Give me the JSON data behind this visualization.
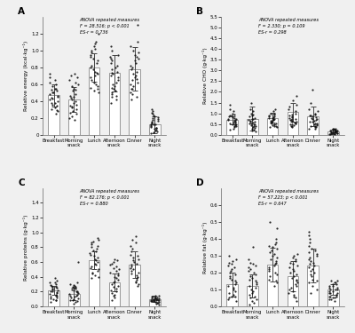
{
  "panels": [
    {
      "label": "A",
      "ylabel": "Relative energy (kcal·kg⁻¹)",
      "anova_text": "ANOVA repeated measures\nF = 28.516; p < 0.001\nES-r = 0.736",
      "ylim": [
        0,
        1.4
      ],
      "yticks": [
        0.0,
        0.2,
        0.4,
        0.6,
        0.8,
        1.0,
        1.2
      ],
      "yticklabels": [
        "0",
        "0.2",
        "0.4",
        "0.6",
        "0.8",
        "1.0",
        "1.2"
      ],
      "bar_means": [
        0.47,
        0.42,
        0.8,
        0.73,
        0.78,
        0.12
      ],
      "bar_errors": [
        0.13,
        0.15,
        0.17,
        0.22,
        0.26,
        0.1
      ],
      "scatter_data": [
        [
          0.25,
          0.3,
          0.35,
          0.4,
          0.45,
          0.5,
          0.55,
          0.6,
          0.65,
          0.55,
          0.48,
          0.38,
          0.42,
          0.52,
          0.58,
          0.32,
          0.44,
          0.5,
          0.62,
          0.36,
          0.46,
          0.54,
          0.43,
          0.28,
          0.68,
          0.72,
          0.38,
          0.29
        ],
        [
          0.2,
          0.25,
          0.3,
          0.35,
          0.4,
          0.45,
          0.55,
          0.6,
          0.65,
          0.22,
          0.48,
          0.52,
          0.58,
          0.62,
          0.68,
          0.32,
          0.38,
          0.42,
          0.28,
          0.72,
          0.36,
          0.46,
          0.54,
          0.18,
          0.7,
          0.26,
          0.34,
          0.44
        ],
        [
          0.55,
          0.6,
          0.65,
          0.7,
          0.75,
          0.8,
          0.85,
          0.9,
          0.95,
          1.0,
          1.05,
          1.1,
          1.2,
          0.58,
          0.62,
          0.68,
          0.72,
          0.78,
          0.82,
          0.88,
          0.92,
          0.98,
          1.02,
          1.08,
          0.5,
          0.52,
          0.56,
          0.74
        ],
        [
          0.45,
          0.5,
          0.55,
          0.6,
          0.65,
          0.7,
          0.75,
          0.8,
          0.85,
          0.9,
          0.95,
          1.0,
          1.05,
          0.48,
          0.52,
          0.58,
          0.62,
          0.68,
          0.72,
          0.78,
          0.82,
          0.88,
          0.42,
          0.38,
          0.56,
          0.92,
          0.46,
          0.74
        ],
        [
          0.42,
          0.48,
          0.55,
          0.6,
          0.65,
          0.7,
          0.75,
          0.8,
          0.85,
          0.9,
          0.95,
          1.0,
          1.05,
          1.1,
          1.3,
          0.5,
          0.55,
          0.62,
          0.68,
          0.72,
          0.78,
          0.82,
          0.88,
          0.92,
          0.98,
          0.45,
          0.58,
          0.66
        ],
        [
          0.02,
          0.05,
          0.08,
          0.1,
          0.12,
          0.15,
          0.18,
          0.2,
          0.25,
          0.3,
          0.06,
          0.09,
          0.13,
          0.16,
          0.22,
          0.28,
          0.03,
          0.07,
          0.11,
          0.14,
          0.17,
          0.23,
          0.26,
          0.04,
          0.19,
          0.21,
          0.08,
          0.12
        ]
      ]
    },
    {
      "label": "B",
      "ylabel": "Relative CHO (g·kg⁻¹)",
      "anova_text": "ANOVA repeated measures\nF = 2.330; p = 0.109\nES-r = 0.298",
      "ylim": [
        0,
        5.5
      ],
      "yticks": [
        0.0,
        0.5,
        1.0,
        1.5,
        2.0,
        2.5,
        3.0,
        3.5,
        4.0,
        4.5,
        5.0,
        5.5
      ],
      "yticklabels": [
        "0.0",
        "0.5",
        "1.0",
        "1.5",
        "2.0",
        "2.5",
        "3.0",
        "3.5",
        "4.0",
        "4.5",
        "5.0",
        "5.5"
      ],
      "bar_means": [
        0.68,
        0.75,
        0.8,
        1.05,
        0.85,
        0.15
      ],
      "bar_errors": [
        0.2,
        0.55,
        0.22,
        0.45,
        0.45,
        0.1
      ],
      "scatter_data": [
        [
          0.3,
          0.4,
          0.5,
          0.6,
          0.7,
          0.8,
          0.9,
          1.0,
          1.1,
          1.2,
          1.4,
          0.35,
          0.45,
          0.55,
          0.65,
          0.75,
          0.85,
          0.95,
          0.25,
          0.52,
          0.62,
          0.72,
          0.82,
          0.92,
          0.42,
          0.48,
          0.58,
          0.68
        ],
        [
          0.2,
          0.3,
          0.4,
          0.5,
          0.6,
          0.7,
          0.8,
          0.9,
          1.0,
          1.1,
          1.2,
          1.5,
          0.25,
          0.35,
          0.45,
          0.55,
          0.65,
          0.75,
          0.85,
          0.95,
          0.42,
          0.52,
          0.62,
          0.72,
          0.32,
          0.15,
          0.48,
          0.58
        ],
        [
          0.4,
          0.5,
          0.6,
          0.7,
          0.8,
          0.9,
          1.0,
          1.1,
          1.2,
          0.45,
          0.55,
          0.65,
          0.75,
          0.85,
          0.95,
          0.35,
          0.42,
          0.52,
          0.62,
          0.72,
          0.82,
          0.48,
          0.58,
          0.68,
          0.78,
          0.88,
          0.98,
          0.38
        ],
        [
          0.4,
          0.5,
          0.6,
          0.7,
          0.8,
          0.9,
          1.0,
          1.1,
          1.2,
          1.3,
          1.4,
          1.6,
          1.8,
          0.45,
          0.55,
          0.65,
          0.75,
          0.85,
          0.95,
          0.35,
          0.42,
          0.52,
          0.62,
          0.72,
          0.82,
          0.48,
          0.58,
          0.68
        ],
        [
          0.3,
          0.4,
          0.5,
          0.6,
          0.7,
          0.8,
          0.9,
          1.0,
          1.1,
          1.2,
          1.5,
          2.1,
          0.35,
          0.45,
          0.55,
          0.65,
          0.75,
          0.85,
          0.95,
          0.42,
          0.52,
          0.62,
          0.72,
          0.82,
          0.92,
          0.48,
          0.38,
          0.28
        ],
        [
          0.05,
          0.08,
          0.1,
          0.12,
          0.15,
          0.18,
          0.2,
          0.22,
          0.25,
          0.28,
          0.3,
          0.06,
          0.09,
          0.13,
          0.16,
          0.19,
          0.23,
          0.26,
          0.03,
          0.07,
          0.11,
          0.14,
          0.17,
          0.21,
          0.24,
          0.27,
          0.04,
          0.08
        ]
      ]
    },
    {
      "label": "C",
      "ylabel": "Relative proteins (g·kg⁻¹)",
      "anova_text": "ANOVA repeated measures\nF = 82.176; p < 0.001\nES-r = 0.880",
      "ylim": [
        0,
        1.6
      ],
      "yticks": [
        0.0,
        0.2,
        0.4,
        0.6,
        0.8,
        1.0,
        1.2,
        1.4
      ],
      "yticklabels": [
        "0.0",
        "0.2",
        "0.4",
        "0.6",
        "0.8",
        "1.0",
        "1.2",
        "1.4"
      ],
      "bar_means": [
        0.22,
        0.17,
        0.63,
        0.32,
        0.57,
        0.1
      ],
      "bar_errors": [
        0.06,
        0.08,
        0.12,
        0.12,
        0.18,
        0.04
      ],
      "scatter_data": [
        [
          0.1,
          0.12,
          0.15,
          0.18,
          0.2,
          0.22,
          0.25,
          0.28,
          0.3,
          0.32,
          0.35,
          0.14,
          0.16,
          0.19,
          0.21,
          0.24,
          0.27,
          0.08,
          0.11,
          0.13,
          0.17,
          0.23,
          0.26,
          0.29,
          0.33,
          0.09,
          0.06,
          0.38
        ],
        [
          0.08,
          0.1,
          0.12,
          0.14,
          0.16,
          0.18,
          0.2,
          0.22,
          0.25,
          0.28,
          0.3,
          0.09,
          0.11,
          0.13,
          0.15,
          0.17,
          0.19,
          0.21,
          0.24,
          0.27,
          0.06,
          0.07,
          0.23,
          0.26,
          0.29,
          0.32,
          0.6,
          0.04
        ],
        [
          0.42,
          0.46,
          0.5,
          0.54,
          0.58,
          0.62,
          0.66,
          0.7,
          0.74,
          0.78,
          0.82,
          0.86,
          0.9,
          0.44,
          0.48,
          0.52,
          0.56,
          0.6,
          0.64,
          0.68,
          0.72,
          0.76,
          0.8,
          0.84,
          0.88,
          0.4,
          0.38,
          0.92
        ],
        [
          0.15,
          0.18,
          0.22,
          0.26,
          0.3,
          0.34,
          0.38,
          0.42,
          0.46,
          0.5,
          0.54,
          0.58,
          0.62,
          0.16,
          0.2,
          0.24,
          0.28,
          0.32,
          0.36,
          0.4,
          0.44,
          0.48,
          0.52,
          0.56,
          0.6,
          0.64,
          0.12,
          0.08
        ],
        [
          0.3,
          0.34,
          0.38,
          0.42,
          0.46,
          0.5,
          0.54,
          0.58,
          0.62,
          0.66,
          0.7,
          0.74,
          0.78,
          0.82,
          0.86,
          0.9,
          0.95,
          0.32,
          0.36,
          0.4,
          0.44,
          0.48,
          0.52,
          0.56,
          0.6,
          0.64,
          0.68,
          0.28
        ],
        [
          0.05,
          0.07,
          0.08,
          0.09,
          0.1,
          0.11,
          0.12,
          0.13,
          0.14,
          0.15,
          0.06,
          0.07,
          0.08,
          0.09,
          0.1,
          0.11,
          0.12,
          0.13,
          0.04,
          0.05,
          0.06,
          0.07,
          0.08,
          0.09,
          0.1,
          0.03,
          0.11,
          0.12
        ]
      ]
    },
    {
      "label": "D",
      "ylabel": "Relative fat (g·kg⁻¹)",
      "anova_text": "ANOVA repeated measures\nF = 57.223; p < 0.001\nES-r = 0.647",
      "ylim": [
        0,
        0.7
      ],
      "yticks": [
        0.0,
        0.1,
        0.2,
        0.3,
        0.4,
        0.5,
        0.6
      ],
      "yticklabels": [
        "0.0",
        "0.1",
        "0.2",
        "0.3",
        "0.4",
        "0.5",
        "0.6"
      ],
      "bar_means": [
        0.13,
        0.12,
        0.245,
        0.18,
        0.24,
        0.1
      ],
      "bar_errors": [
        0.07,
        0.07,
        0.1,
        0.09,
        0.1,
        0.03
      ],
      "scatter_data": [
        [
          0.04,
          0.06,
          0.08,
          0.1,
          0.12,
          0.14,
          0.16,
          0.18,
          0.2,
          0.22,
          0.24,
          0.07,
          0.09,
          0.11,
          0.13,
          0.15,
          0.17,
          0.19,
          0.21,
          0.05,
          0.23,
          0.25,
          0.27,
          0.06,
          0.28,
          0.3,
          0.03,
          0.26
        ],
        [
          0.03,
          0.05,
          0.07,
          0.09,
          0.11,
          0.13,
          0.15,
          0.17,
          0.19,
          0.04,
          0.06,
          0.08,
          0.1,
          0.12,
          0.14,
          0.16,
          0.18,
          0.2,
          0.02,
          0.22,
          0.24,
          0.35,
          0.21,
          0.23,
          0.25,
          0.01,
          0.26,
          0.28
        ],
        [
          0.12,
          0.15,
          0.18,
          0.2,
          0.22,
          0.24,
          0.26,
          0.28,
          0.3,
          0.32,
          0.34,
          0.36,
          0.38,
          0.4,
          0.14,
          0.16,
          0.19,
          0.21,
          0.23,
          0.25,
          0.27,
          0.29,
          0.31,
          0.33,
          0.35,
          0.37,
          0.46,
          0.5
        ],
        [
          0.06,
          0.08,
          0.1,
          0.12,
          0.14,
          0.16,
          0.18,
          0.2,
          0.22,
          0.24,
          0.26,
          0.28,
          0.3,
          0.07,
          0.09,
          0.11,
          0.13,
          0.15,
          0.17,
          0.19,
          0.21,
          0.23,
          0.25,
          0.05,
          0.27,
          0.29,
          0.03,
          0.31
        ],
        [
          0.1,
          0.12,
          0.15,
          0.18,
          0.2,
          0.22,
          0.24,
          0.26,
          0.28,
          0.3,
          0.32,
          0.34,
          0.36,
          0.38,
          0.4,
          0.42,
          0.14,
          0.16,
          0.19,
          0.21,
          0.23,
          0.25,
          0.27,
          0.29,
          0.31,
          0.33,
          0.08,
          0.44
        ],
        [
          0.06,
          0.08,
          0.1,
          0.12,
          0.14,
          0.07,
          0.09,
          0.11,
          0.13,
          0.05,
          0.15,
          0.04,
          0.06,
          0.08,
          0.1,
          0.12,
          0.14,
          0.03,
          0.07,
          0.09,
          0.11,
          0.13,
          0.05,
          0.15,
          0.04,
          0.06,
          0.08,
          0.1
        ]
      ]
    }
  ],
  "categories": [
    "Breakfast",
    "Morning\nsnack",
    "Lunch",
    "Afternoon\nsnack",
    "Dinner",
    "Night\nsnack"
  ],
  "bar_color": "#ffffff",
  "scatter_color": "#111111",
  "bar_edge_color": "#888888",
  "error_color": "#444444",
  "background_color": "#f0f0f0",
  "plot_bg_color": "#f0f0f0"
}
